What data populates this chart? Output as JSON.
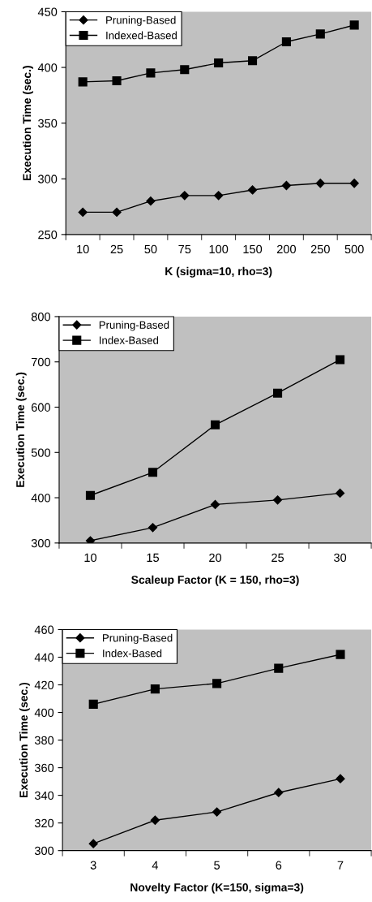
{
  "chart_data": [
    {
      "type": "line",
      "xlabel": "K (sigma=10, rho=3)",
      "ylabel": "Execution Time (sec.)",
      "categories": [
        "10",
        "25",
        "50",
        "75",
        "100",
        "150",
        "200",
        "250",
        "500"
      ],
      "series": [
        {
          "name": "Pruning-Based",
          "color": "#000000",
          "marker": "diamond",
          "values": [
            270,
            270,
            280,
            285,
            285,
            290,
            294,
            296,
            296
          ]
        },
        {
          "name": "Indexed-Based",
          "color": "#000000",
          "marker": "square",
          "values": [
            387,
            388,
            395,
            398,
            404,
            406,
            423,
            430,
            438
          ]
        }
      ],
      "ylim": [
        250,
        450
      ],
      "yticks": [
        250,
        300,
        350,
        400,
        450
      ],
      "grid": false,
      "legend": "top left",
      "line_style": "solid"
    },
    {
      "type": "line",
      "xlabel": "Scaleup Factor (K = 150, rho=3)",
      "ylabel": "Execution Time (sec.)",
      "categories": [
        "10",
        "15",
        "20",
        "25",
        "30"
      ],
      "series": [
        {
          "name": "Pruning-Based",
          "color": "#000000",
          "marker": "diamond",
          "values": [
            305,
            334,
            385,
            395,
            410
          ]
        },
        {
          "name": "Index-Based",
          "color": "#000000",
          "marker": "square",
          "values": [
            405,
            456,
            561,
            631,
            705
          ]
        }
      ],
      "ylim": [
        300,
        800
      ],
      "yticks": [
        300,
        400,
        500,
        600,
        700,
        800
      ],
      "grid": false,
      "legend": "top left",
      "line_style": "solid"
    },
    {
      "type": "line",
      "xlabel": "Novelty Factor (K=150, sigma=3)",
      "ylabel": "Execution Time (sec.)",
      "categories": [
        "3",
        "4",
        "5",
        "6",
        "7"
      ],
      "series": [
        {
          "name": "Pruning-Based",
          "color": "#000000",
          "marker": "diamond",
          "values": [
            305,
            322,
            328,
            342,
            352
          ]
        },
        {
          "name": "Index-Based",
          "color": "#000000",
          "marker": "square",
          "values": [
            406,
            417,
            421,
            432,
            442
          ]
        }
      ],
      "ylim": [
        300,
        460
      ],
      "yticks": [
        300,
        320,
        340,
        360,
        380,
        400,
        420,
        440,
        460
      ],
      "grid": false,
      "legend": "top left",
      "line_style": "solid"
    }
  ]
}
